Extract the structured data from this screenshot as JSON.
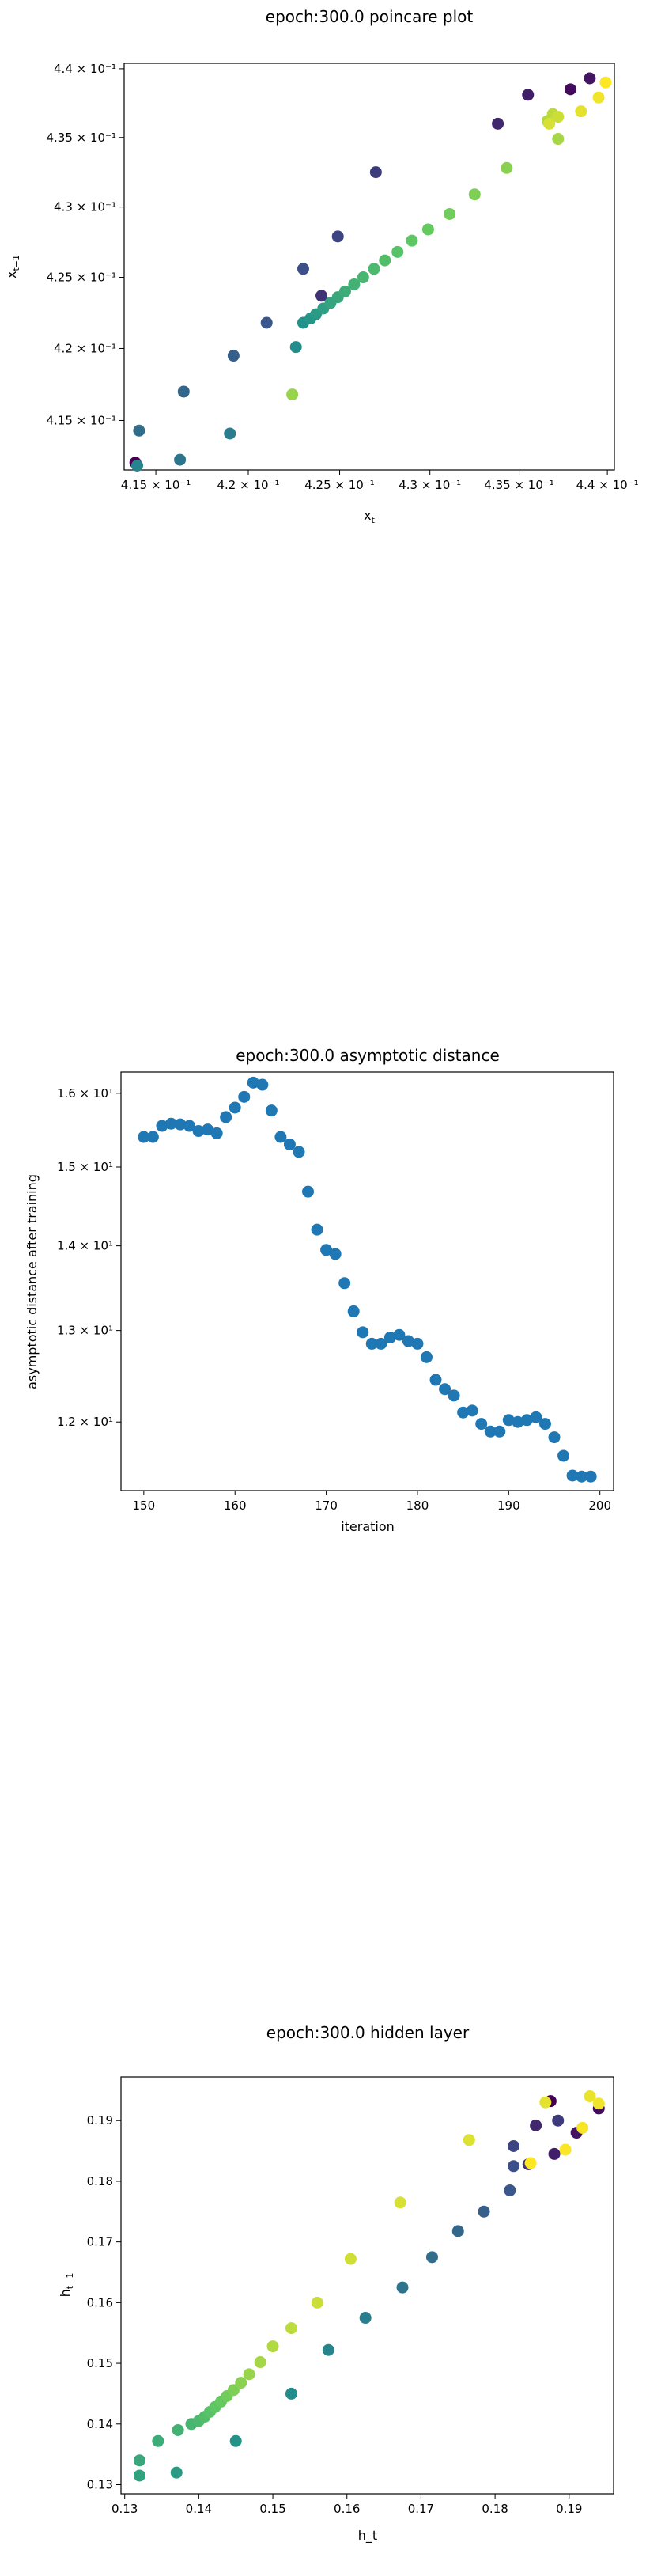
{
  "chart_data": [
    {
      "type": "scatter",
      "title": "epoch:300.0 poincare plot",
      "xlabel": "x_t",
      "ylabel": "x_{t-1}",
      "xscale": "log",
      "yscale": "log",
      "xlim": [
        0.4133,
        0.4404
      ],
      "ylim": [
        0.4116,
        0.4404
      ],
      "xticks": [
        {
          "value": 0.415,
          "label": "4.15 × 10⁻¹"
        },
        {
          "value": 0.42,
          "label": "4.2 × 10⁻¹"
        },
        {
          "value": 0.425,
          "label": "4.25 × 10⁻¹"
        },
        {
          "value": 0.43,
          "label": "4.3 × 10⁻¹"
        },
        {
          "value": 0.435,
          "label": "4.35 × 10⁻¹"
        },
        {
          "value": 0.44,
          "label": "4.4 × 10⁻¹"
        }
      ],
      "yticks": [
        {
          "value": 0.415,
          "label": "4.15 × 10⁻¹"
        },
        {
          "value": 0.42,
          "label": "4.2 × 10⁻¹"
        },
        {
          "value": 0.425,
          "label": "4.25 × 10⁻¹"
        },
        {
          "value": 0.43,
          "label": "4.3 × 10⁻¹"
        },
        {
          "value": 0.435,
          "label": "4.35 × 10⁻¹"
        },
        {
          "value": 0.44,
          "label": "4.4 × 10⁻¹"
        }
      ],
      "colormap": [
        "#440154",
        "#3b528b",
        "#21918c",
        "#5ec962",
        "#fde725"
      ],
      "points": [
        {
          "x": 0.4139,
          "y": 0.4121,
          "c": 0.0
        },
        {
          "x": 0.4379,
          "y": 0.4385,
          "c": 0.03
        },
        {
          "x": 0.439,
          "y": 0.4393,
          "c": 0.06
        },
        {
          "x": 0.4355,
          "y": 0.4381,
          "c": 0.09
        },
        {
          "x": 0.4338,
          "y": 0.436,
          "c": 0.12
        },
        {
          "x": 0.424,
          "y": 0.4237,
          "c": 0.15
        },
        {
          "x": 0.427,
          "y": 0.4325,
          "c": 0.18
        },
        {
          "x": 0.4249,
          "y": 0.4279,
          "c": 0.21
        },
        {
          "x": 0.423,
          "y": 0.4256,
          "c": 0.24
        },
        {
          "x": 0.421,
          "y": 0.4218,
          "c": 0.27
        },
        {
          "x": 0.4192,
          "y": 0.4195,
          "c": 0.3
        },
        {
          "x": 0.4165,
          "y": 0.417,
          "c": 0.33
        },
        {
          "x": 0.4141,
          "y": 0.4143,
          "c": 0.36
        },
        {
          "x": 0.4163,
          "y": 0.4123,
          "c": 0.39
        },
        {
          "x": 0.419,
          "y": 0.4141,
          "c": 0.42
        },
        {
          "x": 0.414,
          "y": 0.4119,
          "c": 0.45
        },
        {
          "x": 0.4226,
          "y": 0.4201,
          "c": 0.48
        },
        {
          "x": 0.423,
          "y": 0.4218,
          "c": 0.5
        },
        {
          "x": 0.4234,
          "y": 0.4221,
          "c": 0.52
        },
        {
          "x": 0.4237,
          "y": 0.4224,
          "c": 0.54
        },
        {
          "x": 0.4241,
          "y": 0.4228,
          "c": 0.56
        },
        {
          "x": 0.4245,
          "y": 0.4232,
          "c": 0.58
        },
        {
          "x": 0.4249,
          "y": 0.4236,
          "c": 0.6
        },
        {
          "x": 0.4253,
          "y": 0.424,
          "c": 0.62
        },
        {
          "x": 0.4258,
          "y": 0.4245,
          "c": 0.64
        },
        {
          "x": 0.4263,
          "y": 0.425,
          "c": 0.66
        },
        {
          "x": 0.4269,
          "y": 0.4256,
          "c": 0.68
        },
        {
          "x": 0.4275,
          "y": 0.4262,
          "c": 0.7
        },
        {
          "x": 0.4282,
          "y": 0.4268,
          "c": 0.72
        },
        {
          "x": 0.429,
          "y": 0.4276,
          "c": 0.74
        },
        {
          "x": 0.4299,
          "y": 0.4284,
          "c": 0.76
        },
        {
          "x": 0.4311,
          "y": 0.4295,
          "c": 0.78
        },
        {
          "x": 0.4325,
          "y": 0.4309,
          "c": 0.8
        },
        {
          "x": 0.4343,
          "y": 0.4328,
          "c": 0.82
        },
        {
          "x": 0.4224,
          "y": 0.4168,
          "c": 0.84
        },
        {
          "x": 0.4372,
          "y": 0.4349,
          "c": 0.86
        },
        {
          "x": 0.4366,
          "y": 0.4362,
          "c": 0.88
        },
        {
          "x": 0.4369,
          "y": 0.4367,
          "c": 0.9
        },
        {
          "x": 0.4372,
          "y": 0.4365,
          "c": 0.92
        },
        {
          "x": 0.4367,
          "y": 0.436,
          "c": 0.94
        },
        {
          "x": 0.4385,
          "y": 0.4369,
          "c": 0.96
        },
        {
          "x": 0.4395,
          "y": 0.4379,
          "c": 0.98
        },
        {
          "x": 0.4399,
          "y": 0.439,
          "c": 1.0
        }
      ]
    },
    {
      "type": "scatter",
      "title": "epoch:300.0 asymptotic distance",
      "xlabel": "iteration",
      "ylabel": "asymptotic distance after training",
      "yscale": "log",
      "xlim": [
        147.5,
        201.5
      ],
      "ylim": [
        11.3,
        16.3
      ],
      "xticks": [
        {
          "value": 150,
          "label": "150"
        },
        {
          "value": 160,
          "label": "160"
        },
        {
          "value": 170,
          "label": "170"
        },
        {
          "value": 180,
          "label": "180"
        },
        {
          "value": 190,
          "label": "190"
        },
        {
          "value": 200,
          "label": "200"
        }
      ],
      "yticks": [
        {
          "value": 12,
          "label": "1.2 × 10¹"
        },
        {
          "value": 13,
          "label": "1.3 × 10¹"
        },
        {
          "value": 14,
          "label": "1.4 × 10¹"
        },
        {
          "value": 15,
          "label": "1.5 × 10¹"
        },
        {
          "value": 16,
          "label": "1.6 × 10¹"
        }
      ],
      "color": "#1f77b4",
      "x": [
        150,
        151,
        152,
        153,
        154,
        155,
        156,
        157,
        158,
        159,
        160,
        161,
        162,
        163,
        164,
        165,
        166,
        167,
        168,
        169,
        170,
        171,
        172,
        173,
        174,
        175,
        176,
        177,
        178,
        179,
        180,
        181,
        182,
        183,
        184,
        185,
        186,
        187,
        188,
        189,
        190,
        191,
        192,
        193,
        194,
        195,
        196,
        197,
        198,
        199
      ],
      "y": [
        15.4,
        15.4,
        15.55,
        15.58,
        15.57,
        15.55,
        15.48,
        15.5,
        15.45,
        15.67,
        15.8,
        15.95,
        16.15,
        16.12,
        15.76,
        15.4,
        15.3,
        15.2,
        14.68,
        14.2,
        13.95,
        13.9,
        13.55,
        13.22,
        12.98,
        12.85,
        12.85,
        12.92,
        12.95,
        12.88,
        12.85,
        12.7,
        12.45,
        12.35,
        12.28,
        12.1,
        12.12,
        11.98,
        11.9,
        11.9,
        12.02,
        12.0,
        12.02,
        12.05,
        11.98,
        11.84,
        11.65,
        11.45,
        11.44,
        11.44
      ]
    },
    {
      "type": "scatter",
      "title": "epoch:300.0 hidden layer",
      "xlabel": "h_t",
      "ylabel": "h_{t-1}",
      "xlim": [
        0.1295,
        0.196
      ],
      "ylim": [
        0.1285,
        0.1972
      ],
      "xticks": [
        {
          "value": 0.13,
          "label": "0.13"
        },
        {
          "value": 0.14,
          "label": "0.14"
        },
        {
          "value": 0.15,
          "label": "0.15"
        },
        {
          "value": 0.16,
          "label": "0.16"
        },
        {
          "value": 0.17,
          "label": "0.17"
        },
        {
          "value": 0.18,
          "label": "0.18"
        },
        {
          "value": 0.19,
          "label": "0.19"
        }
      ],
      "yticks": [
        {
          "value": 0.13,
          "label": "0.13"
        },
        {
          "value": 0.14,
          "label": "0.14"
        },
        {
          "value": 0.15,
          "label": "0.15"
        },
        {
          "value": 0.16,
          "label": "0.16"
        },
        {
          "value": 0.17,
          "label": "0.17"
        },
        {
          "value": 0.18,
          "label": "0.18"
        },
        {
          "value": 0.19,
          "label": "0.19"
        }
      ],
      "colormap": [
        "#440154",
        "#3b528b",
        "#21918c",
        "#5ec962",
        "#fde725"
      ],
      "points": [
        {
          "x": 0.1875,
          "y": 0.1932,
          "c": 0.0
        },
        {
          "x": 0.194,
          "y": 0.192,
          "c": 0.03
        },
        {
          "x": 0.191,
          "y": 0.188,
          "c": 0.06
        },
        {
          "x": 0.188,
          "y": 0.1845,
          "c": 0.09
        },
        {
          "x": 0.1855,
          "y": 0.1892,
          "c": 0.12
        },
        {
          "x": 0.1845,
          "y": 0.1828,
          "c": 0.15
        },
        {
          "x": 0.1885,
          "y": 0.19,
          "c": 0.18
        },
        {
          "x": 0.1825,
          "y": 0.1858,
          "c": 0.21
        },
        {
          "x": 0.1825,
          "y": 0.1825,
          "c": 0.24
        },
        {
          "x": 0.182,
          "y": 0.1785,
          "c": 0.27
        },
        {
          "x": 0.1785,
          "y": 0.175,
          "c": 0.3
        },
        {
          "x": 0.175,
          "y": 0.1718,
          "c": 0.33
        },
        {
          "x": 0.1715,
          "y": 0.1675,
          "c": 0.36
        },
        {
          "x": 0.1675,
          "y": 0.1625,
          "c": 0.39
        },
        {
          "x": 0.1625,
          "y": 0.1575,
          "c": 0.42
        },
        {
          "x": 0.1575,
          "y": 0.1522,
          "c": 0.45
        },
        {
          "x": 0.1525,
          "y": 0.145,
          "c": 0.48
        },
        {
          "x": 0.145,
          "y": 0.1372,
          "c": 0.51
        },
        {
          "x": 0.137,
          "y": 0.132,
          "c": 0.54
        },
        {
          "x": 0.132,
          "y": 0.1315,
          "c": 0.57
        },
        {
          "x": 0.132,
          "y": 0.134,
          "c": 0.6
        },
        {
          "x": 0.1345,
          "y": 0.1372,
          "c": 0.62
        },
        {
          "x": 0.1372,
          "y": 0.139,
          "c": 0.64
        },
        {
          "x": 0.139,
          "y": 0.14,
          "c": 0.66
        },
        {
          "x": 0.14,
          "y": 0.1405,
          "c": 0.68
        },
        {
          "x": 0.1408,
          "y": 0.1412,
          "c": 0.7
        },
        {
          "x": 0.1415,
          "y": 0.142,
          "c": 0.72
        },
        {
          "x": 0.1422,
          "y": 0.1428,
          "c": 0.74
        },
        {
          "x": 0.143,
          "y": 0.1437,
          "c": 0.76
        },
        {
          "x": 0.1438,
          "y": 0.1446,
          "c": 0.78
        },
        {
          "x": 0.1447,
          "y": 0.1456,
          "c": 0.8
        },
        {
          "x": 0.1457,
          "y": 0.1468,
          "c": 0.82
        },
        {
          "x": 0.1468,
          "y": 0.1482,
          "c": 0.84
        },
        {
          "x": 0.1483,
          "y": 0.1502,
          "c": 0.86
        },
        {
          "x": 0.15,
          "y": 0.1528,
          "c": 0.88
        },
        {
          "x": 0.1525,
          "y": 0.1558,
          "c": 0.9
        },
        {
          "x": 0.156,
          "y": 0.16,
          "c": 0.92
        },
        {
          "x": 0.1605,
          "y": 0.1672,
          "c": 0.93
        },
        {
          "x": 0.1672,
          "y": 0.1765,
          "c": 0.94
        },
        {
          "x": 0.1765,
          "y": 0.1868,
          "c": 0.95
        },
        {
          "x": 0.1868,
          "y": 0.193,
          "c": 0.96
        },
        {
          "x": 0.1928,
          "y": 0.194,
          "c": 0.97
        },
        {
          "x": 0.194,
          "y": 0.1928,
          "c": 0.98
        },
        {
          "x": 0.1918,
          "y": 0.1888,
          "c": 0.99
        },
        {
          "x": 0.1895,
          "y": 0.1852,
          "c": 0.995
        },
        {
          "x": 0.1848,
          "y": 0.183,
          "c": 1.0
        }
      ]
    }
  ]
}
